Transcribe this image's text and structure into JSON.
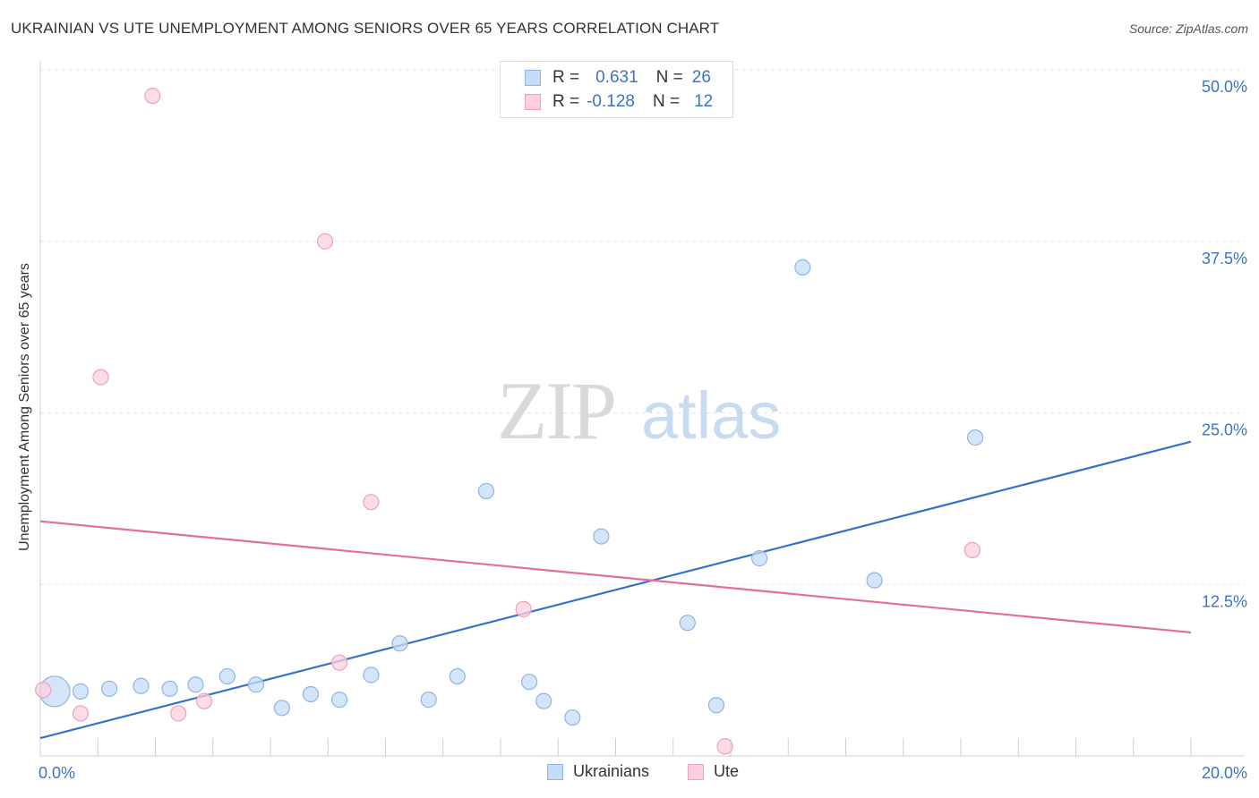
{
  "title": "UKRAINIAN VS UTE UNEMPLOYMENT AMONG SENIORS OVER 65 YEARS CORRELATION CHART",
  "source": "Source: ZipAtlas.com",
  "watermark": {
    "zip": "ZIP",
    "atlas": "atlas"
  },
  "legend_top": {
    "rows": [
      {
        "r_label": "R =",
        "r_value": "0.631",
        "n_label": "N =",
        "n_value": "26"
      },
      {
        "r_label": "R =",
        "r_value": "-0.128",
        "n_label": "N =",
        "n_value": "12"
      }
    ]
  },
  "colors": {
    "ukrainians_fill": "#c6dbf7",
    "ukrainians_stroke": "#8fb4e3",
    "ukrainians_line": "#3572c9",
    "ute_fill": "#fbd0dc",
    "ute_stroke": "#efa1b8",
    "ute_line": "#e0709a",
    "tick_text": "#3a74c4",
    "grid": "#e2e2e2"
  },
  "chart_data": {
    "type": "scatter",
    "title": "UKRAINIAN VS UTE UNEMPLOYMENT AMONG SENIORS OVER 65 YEARS CORRELATION CHART",
    "xlabel": "",
    "ylabel": "Unemployment Among Seniors over 65 years",
    "xlim": [
      0,
      20
    ],
    "ylim": [
      0,
      50
    ],
    "x_tick_labels": [
      "0.0%",
      "20.0%"
    ],
    "y_ticks": [
      12.5,
      25,
      37.5,
      50
    ],
    "y_tick_labels": [
      "12.5%",
      "25.0%",
      "37.5%",
      "50.0%"
    ],
    "grid": true,
    "legend_placement": "top-center",
    "series": [
      {
        "name": "Ukrainians",
        "r": 0.631,
        "n": 26,
        "points": [
          {
            "x": 0.25,
            "y": 4.7,
            "big": true
          },
          {
            "x": 0.7,
            "y": 4.7
          },
          {
            "x": 1.2,
            "y": 4.9
          },
          {
            "x": 1.75,
            "y": 5.1
          },
          {
            "x": 2.25,
            "y": 4.9
          },
          {
            "x": 2.7,
            "y": 5.2
          },
          {
            "x": 3.25,
            "y": 5.8
          },
          {
            "x": 3.75,
            "y": 5.2
          },
          {
            "x": 4.2,
            "y": 3.5
          },
          {
            "x": 4.7,
            "y": 4.5
          },
          {
            "x": 5.2,
            "y": 4.1
          },
          {
            "x": 5.75,
            "y": 5.9
          },
          {
            "x": 6.25,
            "y": 8.2
          },
          {
            "x": 6.75,
            "y": 4.1
          },
          {
            "x": 7.25,
            "y": 5.8
          },
          {
            "x": 7.75,
            "y": 19.3
          },
          {
            "x": 8.5,
            "y": 5.4
          },
          {
            "x": 8.75,
            "y": 4.0
          },
          {
            "x": 9.25,
            "y": 2.8
          },
          {
            "x": 9.75,
            "y": 16.0
          },
          {
            "x": 11.25,
            "y": 9.7
          },
          {
            "x": 11.75,
            "y": 3.7
          },
          {
            "x": 12.5,
            "y": 14.4
          },
          {
            "x": 13.25,
            "y": 35.6
          },
          {
            "x": 14.5,
            "y": 12.8
          },
          {
            "x": 16.25,
            "y": 23.2
          }
        ],
        "trend": {
          "x": [
            0,
            20
          ],
          "y": [
            1.3,
            22.9
          ]
        }
      },
      {
        "name": "Ute",
        "r": -0.128,
        "n": 12,
        "points": [
          {
            "x": 0.05,
            "y": 4.8
          },
          {
            "x": 0.7,
            "y": 3.1
          },
          {
            "x": 1.05,
            "y": 27.6
          },
          {
            "x": 1.95,
            "y": 48.1
          },
          {
            "x": 2.4,
            "y": 3.1
          },
          {
            "x": 2.85,
            "y": 4.0
          },
          {
            "x": 4.95,
            "y": 37.5
          },
          {
            "x": 5.2,
            "y": 6.8
          },
          {
            "x": 5.75,
            "y": 18.5
          },
          {
            "x": 8.4,
            "y": 10.7
          },
          {
            "x": 11.9,
            "y": 0.7
          },
          {
            "x": 16.2,
            "y": 15.0
          }
        ],
        "trend": {
          "x": [
            0,
            20
          ],
          "y": [
            17.1,
            9.0
          ]
        }
      }
    ]
  }
}
